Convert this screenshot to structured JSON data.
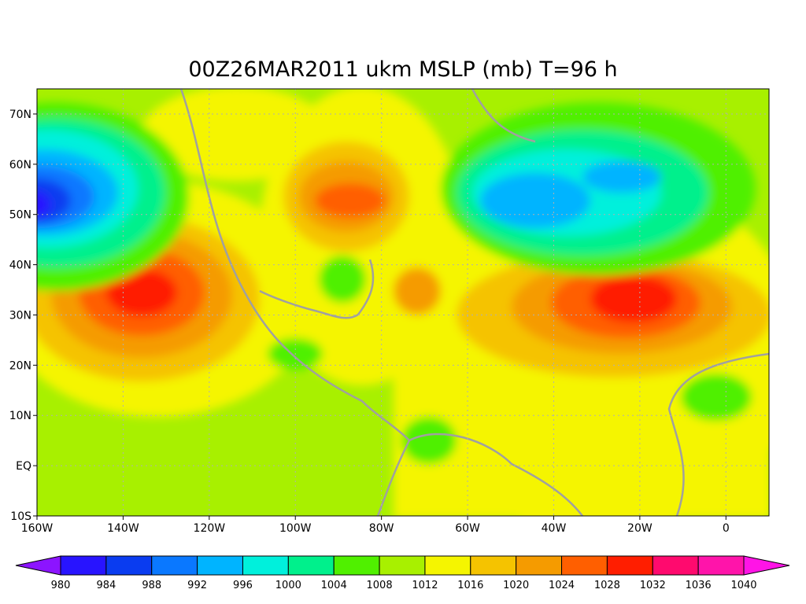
{
  "chart_data": {
    "type": "map",
    "title": "00Z26MAR2011 ukm MSLP (mb) T=96 h",
    "xlim": [
      -160,
      10
    ],
    "ylim": [
      -10,
      75
    ],
    "xticks": [
      {
        "value": -160,
        "label": "160W"
      },
      {
        "value": -140,
        "label": "140W"
      },
      {
        "value": -120,
        "label": "120W"
      },
      {
        "value": -100,
        "label": "100W"
      },
      {
        "value": -80,
        "label": "80W"
      },
      {
        "value": -60,
        "label": "60W"
      },
      {
        "value": -40,
        "label": "40W"
      },
      {
        "value": -20,
        "label": "20W"
      },
      0
    ],
    "yticks": [
      {
        "value": -10,
        "label": "10S"
      },
      {
        "value": 0,
        "label": "EQ"
      },
      {
        "value": 10,
        "label": "10N"
      },
      {
        "value": 20,
        "label": "20N"
      },
      {
        "value": 30,
        "label": "30N"
      },
      {
        "value": 40,
        "label": "40N"
      },
      {
        "value": 50,
        "label": "50N"
      },
      {
        "value": 60,
        "label": "60N"
      },
      {
        "value": 70,
        "label": "70N"
      }
    ],
    "grid": true,
    "colorbar": {
      "levels": [
        980,
        984,
        988,
        992,
        996,
        1000,
        1004,
        1008,
        1012,
        1016,
        1020,
        1024,
        1028,
        1032,
        1036,
        1040
      ],
      "under_color": "#8c14ff",
      "over_color": "#ff14e6",
      "colors": [
        "#2814ff",
        "#0a3cf0",
        "#0a78ff",
        "#00b4ff",
        "#00f0dc",
        "#00f08c",
        "#50f000",
        "#a8f000",
        "#f5f500",
        "#f5c300",
        "#f59b00",
        "#ff5f00",
        "#ff1e00",
        "#ff0a6e",
        "#ff14aa"
      ]
    }
  }
}
